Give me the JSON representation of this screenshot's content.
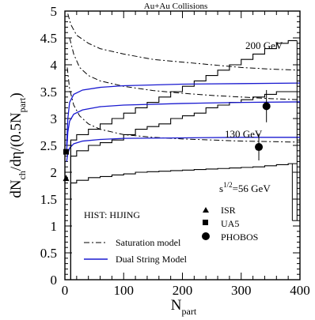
{
  "chart_data": {
    "type": "line",
    "title": "Au+Au Collisions",
    "xlabel": {
      "main": "N",
      "sub": "part"
    },
    "ylabel": {
      "a": "dN",
      "a_sub": "ch",
      "b": "/d",
      "c": "η",
      "d": "/(0.5N",
      "d_sub": "part",
      "e": ")"
    },
    "xlim": [
      0,
      400
    ],
    "ylim": [
      0,
      5
    ],
    "xticks": [
      0,
      100,
      200,
      300,
      400
    ],
    "yticks": [
      0,
      0.5,
      1,
      1.5,
      2,
      2.5,
      3,
      3.5,
      4,
      4.5,
      5
    ],
    "annotations": {
      "e200": "200 GeV",
      "e130": "130 GeV",
      "e56": "=56 GeV",
      "e56_sup": "1/2",
      "e56_prefix": "s"
    },
    "legend": {
      "hist": "HIST: HIJING",
      "saturation": "Saturation model",
      "dual": "Dual String Model",
      "isr": "ISR",
      "ua5": "UA5",
      "phobos": "PHOBOS"
    },
    "colors": {
      "dual_string": "#1a1ad0",
      "hist": "#000000"
    },
    "series": [
      {
        "name": "HIJING",
        "energy": "200 GeV",
        "style": "histogram",
        "values": [
          [
            10,
            2.6
          ],
          [
            20,
            2.7
          ],
          [
            40,
            2.8
          ],
          [
            60,
            2.9
          ],
          [
            80,
            3.0
          ],
          [
            100,
            3.1
          ],
          [
            120,
            3.2
          ],
          [
            140,
            3.3
          ],
          [
            160,
            3.4
          ],
          [
            180,
            3.5
          ],
          [
            200,
            3.6
          ],
          [
            220,
            3.7
          ],
          [
            240,
            3.8
          ],
          [
            260,
            3.9
          ],
          [
            280,
            4.0
          ],
          [
            300,
            4.1
          ],
          [
            320,
            4.2
          ],
          [
            340,
            4.3
          ],
          [
            360,
            4.4
          ],
          [
            380,
            4.45
          ],
          [
            390,
            4.45
          ]
        ]
      },
      {
        "name": "HIJING",
        "energy": "130 GeV",
        "style": "histogram",
        "values": [
          [
            10,
            2.3
          ],
          [
            20,
            2.4
          ],
          [
            40,
            2.5
          ],
          [
            60,
            2.55
          ],
          [
            80,
            2.6
          ],
          [
            100,
            2.7
          ],
          [
            120,
            2.8
          ],
          [
            140,
            2.85
          ],
          [
            160,
            2.9
          ],
          [
            180,
            3.0
          ],
          [
            200,
            3.05
          ],
          [
            220,
            3.1
          ],
          [
            240,
            3.2
          ],
          [
            260,
            3.25
          ],
          [
            280,
            3.3
          ],
          [
            300,
            3.35
          ],
          [
            320,
            3.4
          ],
          [
            340,
            3.45
          ],
          [
            360,
            3.5
          ],
          [
            380,
            3.5
          ],
          [
            390,
            3.5
          ]
        ]
      },
      {
        "name": "HIJING",
        "energy": "56 GeV",
        "style": "histogram",
        "values": [
          [
            10,
            1.8
          ],
          [
            20,
            1.85
          ],
          [
            40,
            1.9
          ],
          [
            60,
            1.92
          ],
          [
            80,
            1.95
          ],
          [
            100,
            1.97
          ],
          [
            120,
            2.0
          ],
          [
            140,
            2.01
          ],
          [
            160,
            2.02
          ],
          [
            180,
            2.03
          ],
          [
            200,
            2.04
          ],
          [
            220,
            2.05
          ],
          [
            240,
            2.06
          ],
          [
            260,
            2.07
          ],
          [
            280,
            2.08
          ],
          [
            300,
            2.09
          ],
          [
            320,
            2.1
          ],
          [
            340,
            2.12
          ],
          [
            360,
            2.14
          ],
          [
            380,
            2.16
          ],
          [
            390,
            2.16
          ]
        ]
      },
      {
        "name": "Saturation model",
        "energy": "200 GeV",
        "style": "dashdot",
        "values": [
          [
            5,
            4.95
          ],
          [
            10,
            4.75
          ],
          [
            20,
            4.55
          ],
          [
            40,
            4.4
          ],
          [
            60,
            4.3
          ],
          [
            100,
            4.2
          ],
          [
            150,
            4.1
          ],
          [
            200,
            4.05
          ],
          [
            250,
            4.0
          ],
          [
            300,
            3.95
          ],
          [
            350,
            3.92
          ],
          [
            400,
            3.9
          ]
        ]
      },
      {
        "name": "Saturation model",
        "energy": "130 GeV",
        "style": "dashdot",
        "values": [
          [
            8,
            4.5
          ],
          [
            15,
            4.2
          ],
          [
            25,
            3.95
          ],
          [
            40,
            3.8
          ],
          [
            60,
            3.7
          ],
          [
            100,
            3.6
          ],
          [
            150,
            3.52
          ],
          [
            200,
            3.47
          ],
          [
            250,
            3.43
          ],
          [
            300,
            3.4
          ],
          [
            350,
            3.37
          ],
          [
            400,
            3.35
          ]
        ]
      },
      {
        "name": "Saturation model",
        "energy": "56 GeV",
        "style": "dashdot",
        "values": [
          [
            4,
            3.95
          ],
          [
            8,
            3.55
          ],
          [
            15,
            3.25
          ],
          [
            25,
            3.05
          ],
          [
            40,
            2.9
          ],
          [
            60,
            2.8
          ],
          [
            100,
            2.7
          ],
          [
            150,
            2.65
          ],
          [
            200,
            2.62
          ],
          [
            250,
            2.6
          ],
          [
            300,
            2.58
          ],
          [
            350,
            2.57
          ],
          [
            400,
            2.56
          ]
        ]
      },
      {
        "name": "Dual String Model",
        "energy": "200 GeV",
        "style": "solid",
        "values": [
          [
            3,
            2.5
          ],
          [
            5,
            3.0
          ],
          [
            8,
            3.3
          ],
          [
            15,
            3.45
          ],
          [
            30,
            3.53
          ],
          [
            60,
            3.58
          ],
          [
            100,
            3.61
          ],
          [
            200,
            3.64
          ],
          [
            300,
            3.65
          ],
          [
            400,
            3.66
          ]
        ]
      },
      {
        "name": "Dual String Model",
        "energy": "130 GeV",
        "style": "solid",
        "values": [
          [
            3,
            2.4
          ],
          [
            5,
            2.75
          ],
          [
            8,
            2.95
          ],
          [
            15,
            3.08
          ],
          [
            30,
            3.16
          ],
          [
            60,
            3.22
          ],
          [
            100,
            3.25
          ],
          [
            200,
            3.28
          ],
          [
            300,
            3.3
          ],
          [
            400,
            3.31
          ]
        ]
      },
      {
        "name": "Dual String Model",
        "energy": "56 GeV",
        "style": "solid",
        "values": [
          [
            3,
            2.2
          ],
          [
            5,
            2.35
          ],
          [
            8,
            2.45
          ],
          [
            15,
            2.53
          ],
          [
            30,
            2.58
          ],
          [
            60,
            2.61
          ],
          [
            100,
            2.63
          ],
          [
            200,
            2.64
          ],
          [
            300,
            2.65
          ],
          [
            400,
            2.65
          ]
        ]
      }
    ],
    "data_points": [
      {
        "name": "ISR",
        "marker": "triangle",
        "x": 2,
        "y": 1.88
      },
      {
        "name": "UA5",
        "marker": "square",
        "x": 2,
        "y": 2.38
      },
      {
        "name": "PHOBOS",
        "marker": "circle",
        "x": 330,
        "y": 2.47,
        "err": 0.25
      },
      {
        "name": "PHOBOS",
        "marker": "circle",
        "x": 343,
        "y": 3.23,
        "err": 0.3
      }
    ]
  }
}
